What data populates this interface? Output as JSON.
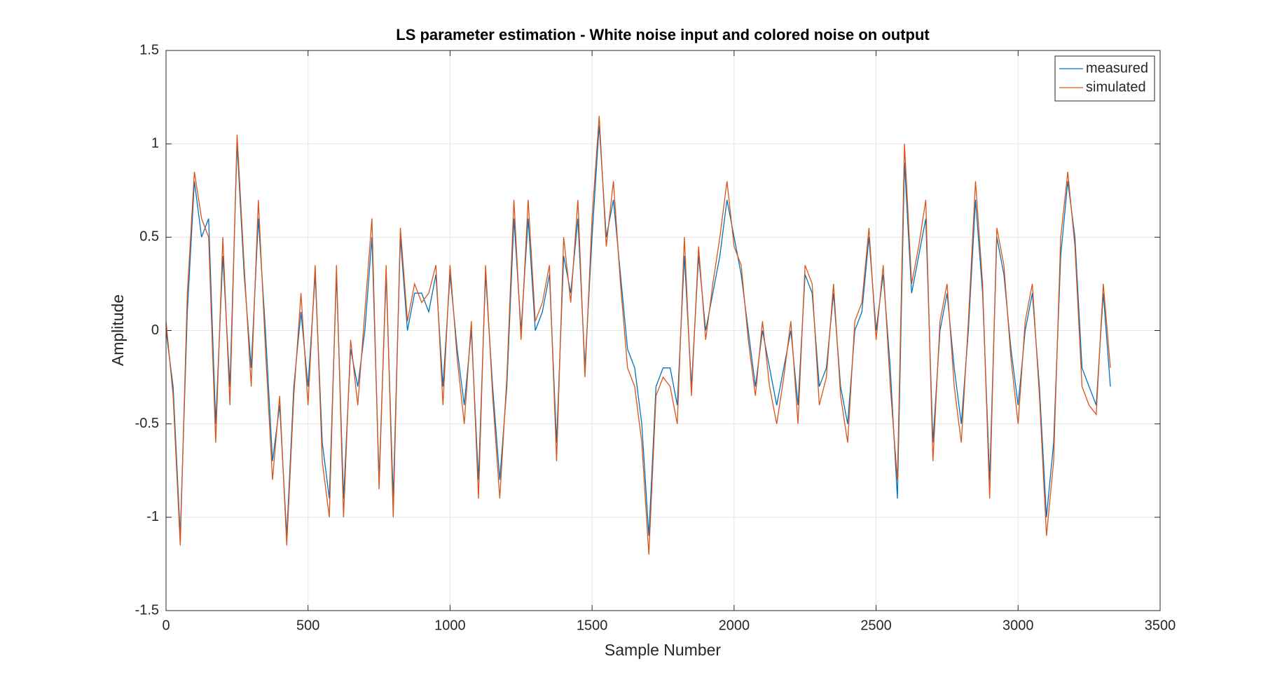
{
  "chart_data": {
    "type": "line",
    "title": "LS parameter estimation - White noise input and colored noise on output",
    "xlabel": "Sample Number",
    "ylabel": "Amplitude",
    "x": [
      0,
      25,
      50,
      75,
      100,
      125,
      150,
      175,
      200,
      225,
      250,
      275,
      300,
      325,
      350,
      375,
      400,
      425,
      450,
      475,
      500,
      525,
      550,
      575,
      600,
      625,
      650,
      675,
      700,
      725,
      750,
      775,
      800,
      825,
      850,
      875,
      900,
      925,
      950,
      975,
      1000,
      1025,
      1050,
      1075,
      1100,
      1125,
      1150,
      1175,
      1200,
      1225,
      1250,
      1275,
      1300,
      1325,
      1350,
      1375,
      1400,
      1425,
      1450,
      1475,
      1500,
      1525,
      1550,
      1575,
      1600,
      1625,
      1650,
      1675,
      1700,
      1725,
      1750,
      1775,
      1800,
      1825,
      1850,
      1875,
      1900,
      1925,
      1950,
      1975,
      2000,
      2025,
      2050,
      2075,
      2100,
      2125,
      2150,
      2175,
      2200,
      2225,
      2250,
      2275,
      2300,
      2325,
      2350,
      2375,
      2400,
      2425,
      2450,
      2475,
      2500,
      2525,
      2550,
      2575,
      2600,
      2625,
      2650,
      2675,
      2700,
      2725,
      2750,
      2775,
      2800,
      2825,
      2850,
      2875,
      2900,
      2925,
      2950,
      2975,
      3000,
      3025,
      3050,
      3075,
      3100,
      3125,
      3150,
      3175,
      3200,
      3225,
      3250,
      3275,
      3300,
      3325
    ],
    "series": [
      {
        "name": "measured",
        "color": "#0072BD",
        "values": [
          0.0,
          -0.3,
          -1.1,
          0.1,
          0.8,
          0.5,
          0.6,
          -0.5,
          0.4,
          -0.3,
          1.0,
          0.3,
          -0.2,
          0.6,
          0.0,
          -0.7,
          -0.4,
          -1.1,
          -0.3,
          0.1,
          -0.3,
          0.3,
          -0.6,
          -0.9,
          0.3,
          -0.9,
          -0.1,
          -0.3,
          0.0,
          0.5,
          -0.8,
          0.3,
          -0.9,
          0.5,
          0.0,
          0.2,
          0.2,
          0.1,
          0.3,
          -0.3,
          0.3,
          -0.1,
          -0.4,
          0.0,
          -0.8,
          0.3,
          -0.3,
          -0.8,
          -0.3,
          0.6,
          0.0,
          0.6,
          0.0,
          0.1,
          0.3,
          -0.6,
          0.4,
          0.2,
          0.6,
          -0.2,
          0.5,
          1.1,
          0.5,
          0.7,
          0.3,
          -0.1,
          -0.2,
          -0.5,
          -1.1,
          -0.3,
          -0.2,
          -0.2,
          -0.4,
          0.4,
          -0.3,
          0.4,
          0.0,
          0.2,
          0.4,
          0.7,
          0.5,
          0.3,
          0.0,
          -0.3,
          0.0,
          -0.2,
          -0.4,
          -0.2,
          0.0,
          -0.4,
          0.3,
          0.2,
          -0.3,
          -0.2,
          0.2,
          -0.3,
          -0.5,
          0.0,
          0.1,
          0.5,
          0.0,
          0.3,
          -0.2,
          -0.9,
          0.9,
          0.2,
          0.4,
          0.6,
          -0.6,
          0.0,
          0.2,
          -0.2,
          -0.5,
          0.0,
          0.7,
          0.2,
          -0.8,
          0.5,
          0.3,
          -0.1,
          -0.4,
          0.0,
          0.2,
          -0.3,
          -1.0,
          -0.6,
          0.4,
          0.8,
          0.5,
          -0.2,
          -0.3,
          -0.4,
          0.2,
          -0.3
        ]
      },
      {
        "name": "simulated",
        "color": "#D95319",
        "values": [
          0.05,
          -0.35,
          -1.15,
          0.2,
          0.85,
          0.6,
          0.5,
          -0.6,
          0.5,
          -0.4,
          1.05,
          0.35,
          -0.3,
          0.7,
          -0.1,
          -0.8,
          -0.35,
          -1.15,
          -0.35,
          0.2,
          -0.4,
          0.35,
          -0.7,
          -1.0,
          0.35,
          -1.0,
          -0.05,
          -0.4,
          0.1,
          0.6,
          -0.85,
          0.35,
          -1.0,
          0.55,
          0.05,
          0.25,
          0.15,
          0.2,
          0.35,
          -0.4,
          0.35,
          -0.15,
          -0.5,
          0.05,
          -0.9,
          0.35,
          -0.35,
          -0.9,
          -0.25,
          0.7,
          -0.05,
          0.7,
          0.05,
          0.15,
          0.35,
          -0.7,
          0.5,
          0.15,
          0.7,
          -0.25,
          0.6,
          1.15,
          0.45,
          0.8,
          0.25,
          -0.2,
          -0.3,
          -0.6,
          -1.2,
          -0.35,
          -0.25,
          -0.3,
          -0.5,
          0.5,
          -0.35,
          0.45,
          -0.05,
          0.25,
          0.5,
          0.8,
          0.45,
          0.35,
          -0.05,
          -0.35,
          0.05,
          -0.3,
          -0.5,
          -0.25,
          0.05,
          -0.5,
          0.35,
          0.25,
          -0.4,
          -0.25,
          0.25,
          -0.35,
          -0.6,
          0.05,
          0.15,
          0.55,
          -0.05,
          0.35,
          -0.3,
          -0.8,
          1.0,
          0.25,
          0.45,
          0.7,
          -0.7,
          0.05,
          0.25,
          -0.3,
          -0.6,
          0.05,
          0.8,
          0.25,
          -0.9,
          0.55,
          0.35,
          -0.15,
          -0.5,
          0.05,
          0.25,
          -0.35,
          -1.1,
          -0.7,
          0.5,
          0.85,
          0.45,
          -0.3,
          -0.4,
          -0.45,
          0.25,
          -0.2
        ]
      }
    ],
    "xlim": [
      0,
      3500
    ],
    "xticks": [
      0,
      500,
      1000,
      1500,
      2000,
      2500,
      3000,
      3500
    ],
    "ylim": [
      -1.5,
      1.5
    ],
    "yticks": [
      -1.5,
      -1,
      -0.5,
      0,
      0.5,
      1,
      1.5
    ],
    "grid": true,
    "legend": "northeast"
  }
}
